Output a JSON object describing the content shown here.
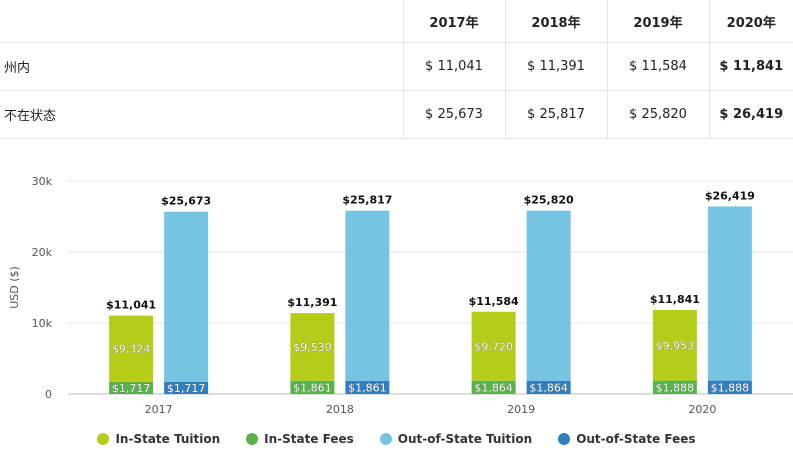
{
  "table": {
    "headers": [
      "2017年",
      "2018年",
      "2019年",
      "2020年"
    ],
    "rows": [
      {
        "label": "州内",
        "values": [
          "$ 11,041",
          "$ 11,391",
          "$ 11,584",
          "$ 11,841"
        ]
      },
      {
        "label": "不在状态",
        "values": [
          "$ 25,673",
          "$ 25,817",
          "$ 25,820",
          "$ 26,419"
        ]
      }
    ]
  },
  "chart_data": {
    "type": "bar",
    "categories": [
      "2017",
      "2018",
      "2019",
      "2020"
    ],
    "ylabel": "USD ($)",
    "ylim": [
      0,
      30000
    ],
    "yticks": [
      0,
      10000,
      20000,
      30000
    ],
    "ytick_labels": [
      "0",
      "10k",
      "20k",
      "30k"
    ],
    "grid": true,
    "legend_position": "bottom",
    "series": [
      {
        "name": "In-State Tuition",
        "color": "#b5cc18",
        "stack": "in",
        "values": [
          9324,
          9530,
          9720,
          9953
        ],
        "labels": [
          "$9,324",
          "$9,530",
          "$9,720",
          "$9,953"
        ]
      },
      {
        "name": "In-State Fees",
        "color": "#5ab34a",
        "stack": "in",
        "values": [
          1717,
          1861,
          1864,
          1888
        ],
        "labels": [
          "$1,717",
          "$1,861",
          "$1,864",
          "$1,888"
        ]
      },
      {
        "name": "Out-of-State Tuition",
        "color": "#74c4e2",
        "stack": "out",
        "values": [
          23956,
          23956,
          23956,
          24531
        ],
        "labels": []
      },
      {
        "name": "Out-of-State Fees",
        "color": "#2f7fc1",
        "stack": "out",
        "values": [
          1717,
          1861,
          1864,
          1888
        ],
        "labels": [
          "$1,717",
          "$1,861",
          "$1,864",
          "$1,888"
        ]
      }
    ],
    "totals": {
      "in": [
        "$11,041",
        "$11,391",
        "$11,584",
        "$11,841"
      ],
      "out": [
        "$25,673",
        "$25,817",
        "$25,820",
        "$26,419"
      ],
      "in_values": [
        11041,
        11391,
        11584,
        11841
      ],
      "out_values": [
        25673,
        25817,
        25820,
        26419
      ]
    }
  }
}
